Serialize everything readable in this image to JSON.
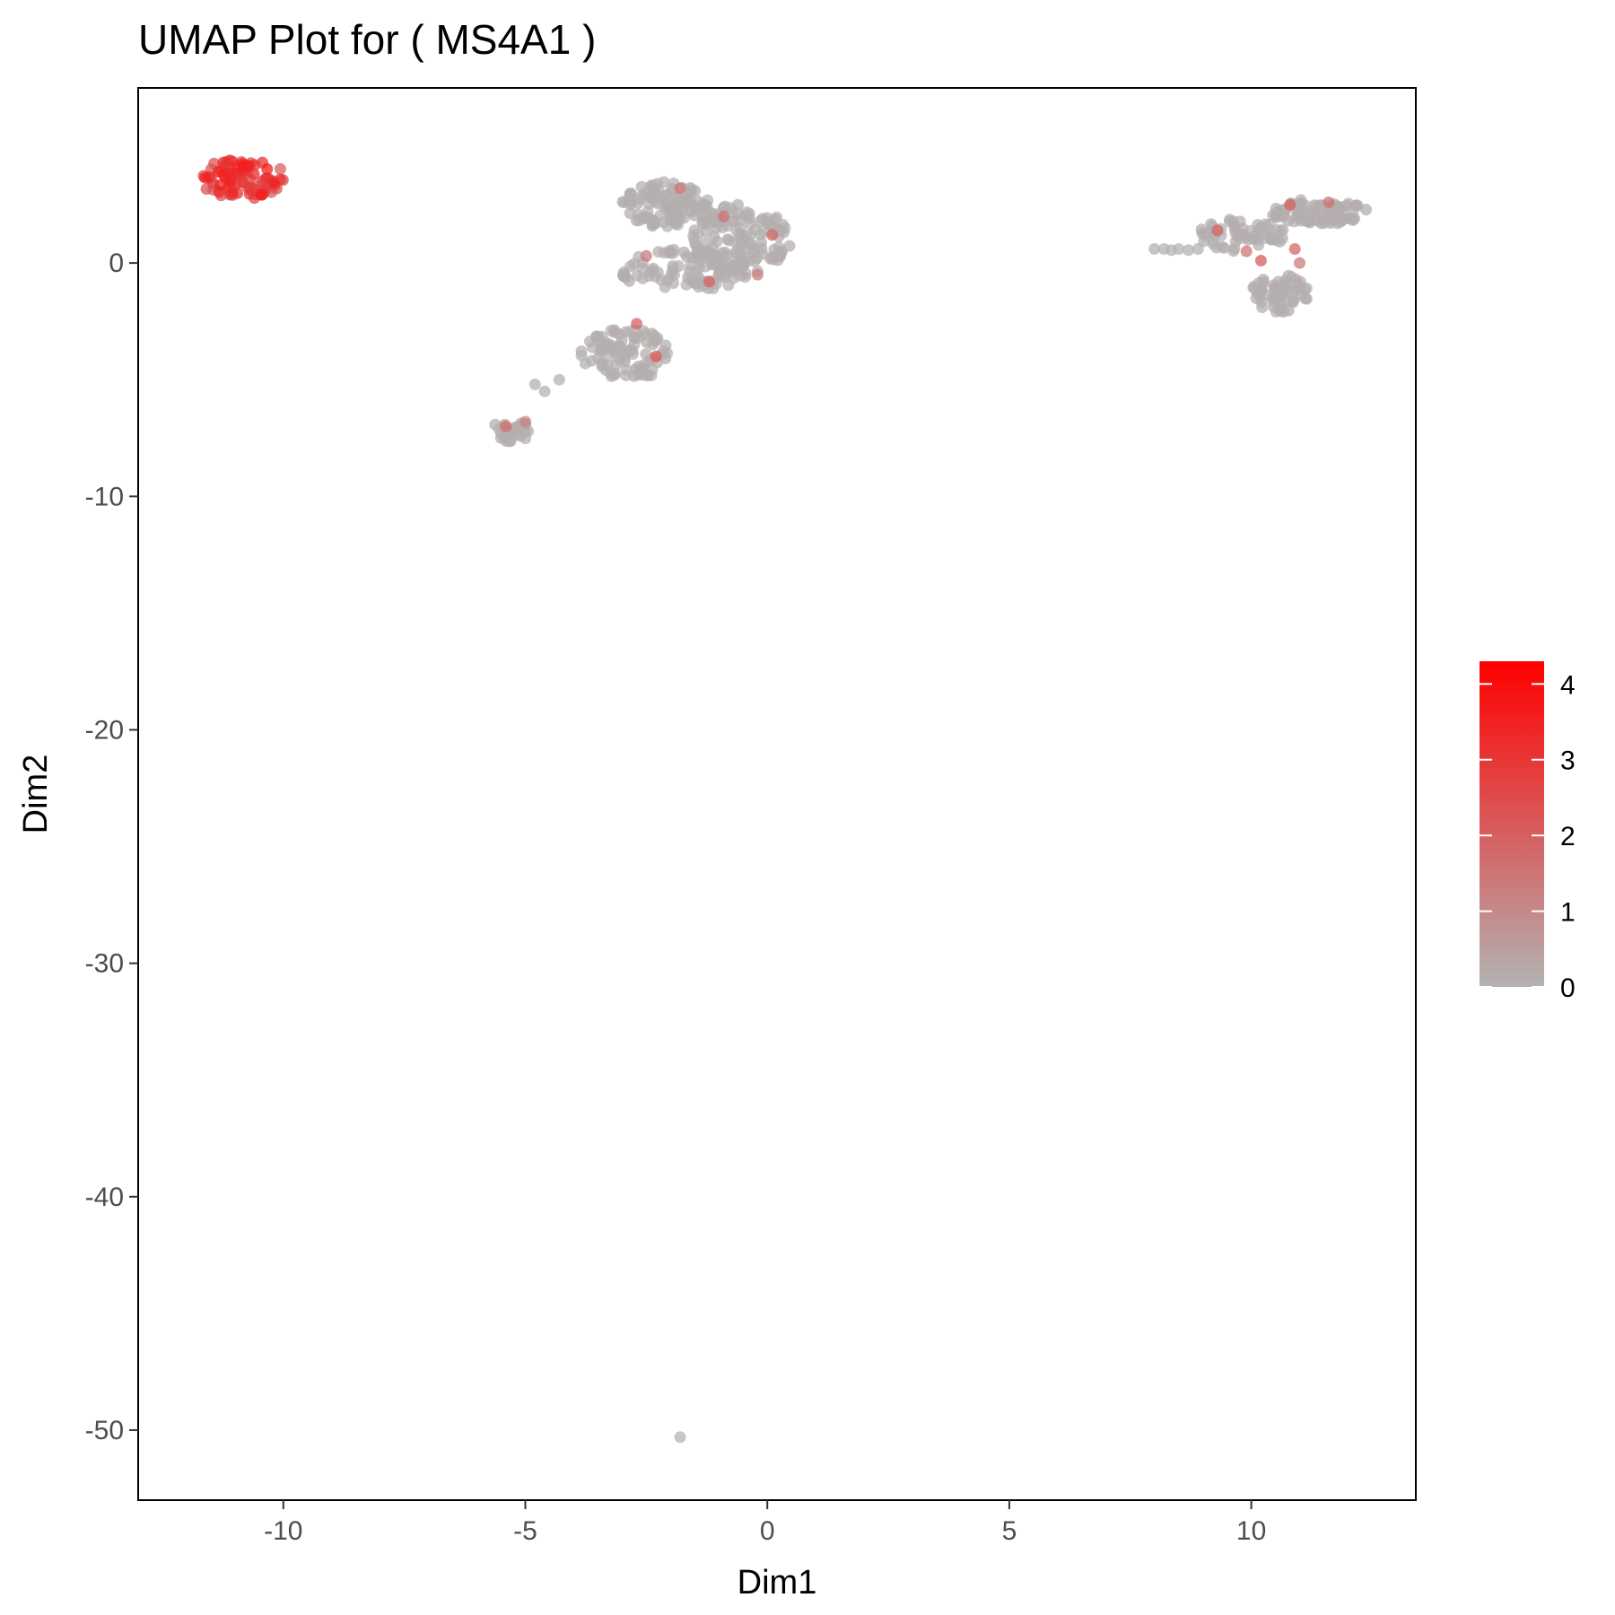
{
  "chart_data": {
    "type": "scatter",
    "title": "UMAP Plot for ( MS4A1 )",
    "xlabel": "Dim1",
    "ylabel": "Dim2",
    "xlim": [
      -13,
      13.4
    ],
    "ylim": [
      -53,
      7.5
    ],
    "xticks": [
      -10,
      -5,
      0,
      5,
      10
    ],
    "yticks": [
      0,
      -10,
      -20,
      -30,
      -40,
      -50
    ],
    "grid": false,
    "legend": {
      "position": "right",
      "type": "colorbar",
      "min": 0,
      "max": 4.3,
      "ticks": [
        0,
        1,
        2,
        3,
        4
      ],
      "low_color": "#b3b3b3",
      "high_color": "#ff0000"
    },
    "clusters": [
      {
        "cx": -10.85,
        "cy": 3.6,
        "rx": 0.95,
        "ry": 0.85,
        "n": 90,
        "expression": [
          1.8,
          3.6
        ]
      },
      {
        "cx": -2.1,
        "cy": 2.5,
        "rx": 0.9,
        "ry": 1.0,
        "n": 110,
        "expression": [
          0,
          0.15
        ]
      },
      {
        "cx": -0.6,
        "cy": 1.0,
        "rx": 1.1,
        "ry": 1.5,
        "n": 130,
        "expression": [
          0,
          0.15
        ]
      },
      {
        "cx": -1.7,
        "cy": -0.3,
        "rx": 1.4,
        "ry": 0.9,
        "n": 90,
        "expression": [
          0,
          0.15
        ]
      },
      {
        "cx": -2.9,
        "cy": -3.9,
        "rx": 0.95,
        "ry": 1.1,
        "n": 90,
        "expression": [
          0,
          0.15
        ]
      },
      {
        "cx": -5.3,
        "cy": -7.2,
        "rx": 0.45,
        "ry": 0.45,
        "n": 30,
        "expression": [
          0,
          0.15
        ]
      },
      {
        "cx": 9.8,
        "cy": 1.2,
        "rx": 0.9,
        "ry": 0.7,
        "n": 60,
        "expression": [
          0,
          0.15
        ]
      },
      {
        "cx": 11.4,
        "cy": 2.2,
        "rx": 1.0,
        "ry": 0.55,
        "n": 90,
        "expression": [
          0,
          0.15
        ]
      },
      {
        "cx": 10.6,
        "cy": -1.3,
        "rx": 0.6,
        "ry": 0.8,
        "n": 60,
        "expression": [
          0,
          0.15
        ]
      }
    ],
    "points": [
      {
        "x": 8.0,
        "y": 0.6,
        "v": 0
      },
      {
        "x": 8.2,
        "y": 0.6,
        "v": 0
      },
      {
        "x": 8.35,
        "y": 0.55,
        "v": 0
      },
      {
        "x": 8.5,
        "y": 0.6,
        "v": 0
      },
      {
        "x": 8.7,
        "y": 0.55,
        "v": 0
      },
      {
        "x": 8.9,
        "y": 0.6,
        "v": 0
      },
      {
        "x": -4.8,
        "y": -5.2,
        "v": 0
      },
      {
        "x": -4.6,
        "y": -5.5,
        "v": 0
      },
      {
        "x": -4.3,
        "y": -5.0,
        "v": 0
      },
      {
        "x": -1.8,
        "y": -50.3,
        "v": 0
      },
      {
        "x": -2.7,
        "y": -2.6,
        "v": 1.9
      },
      {
        "x": -2.3,
        "y": -4.0,
        "v": 2.2
      },
      {
        "x": -0.9,
        "y": 2.0,
        "v": 1.6
      },
      {
        "x": -2.5,
        "y": 0.3,
        "v": 1.4
      },
      {
        "x": -1.2,
        "y": -0.8,
        "v": 2.0
      },
      {
        "x": 0.1,
        "y": 1.2,
        "v": 1.8
      },
      {
        "x": -0.2,
        "y": -0.5,
        "v": 1.3
      },
      {
        "x": -1.8,
        "y": 3.2,
        "v": 1.5
      },
      {
        "x": -5.4,
        "y": -7.0,
        "v": 1.7
      },
      {
        "x": -5.0,
        "y": -6.8,
        "v": 1.2
      },
      {
        "x": 9.3,
        "y": 1.4,
        "v": 1.9
      },
      {
        "x": 9.9,
        "y": 0.5,
        "v": 1.5
      },
      {
        "x": 10.2,
        "y": 0.1,
        "v": 2.1
      },
      {
        "x": 10.9,
        "y": 0.6,
        "v": 1.8
      },
      {
        "x": 11.6,
        "y": 2.6,
        "v": 1.6
      },
      {
        "x": 10.8,
        "y": 2.5,
        "v": 2.0
      },
      {
        "x": 11.0,
        "y": 0.0,
        "v": 1.4
      }
    ]
  }
}
